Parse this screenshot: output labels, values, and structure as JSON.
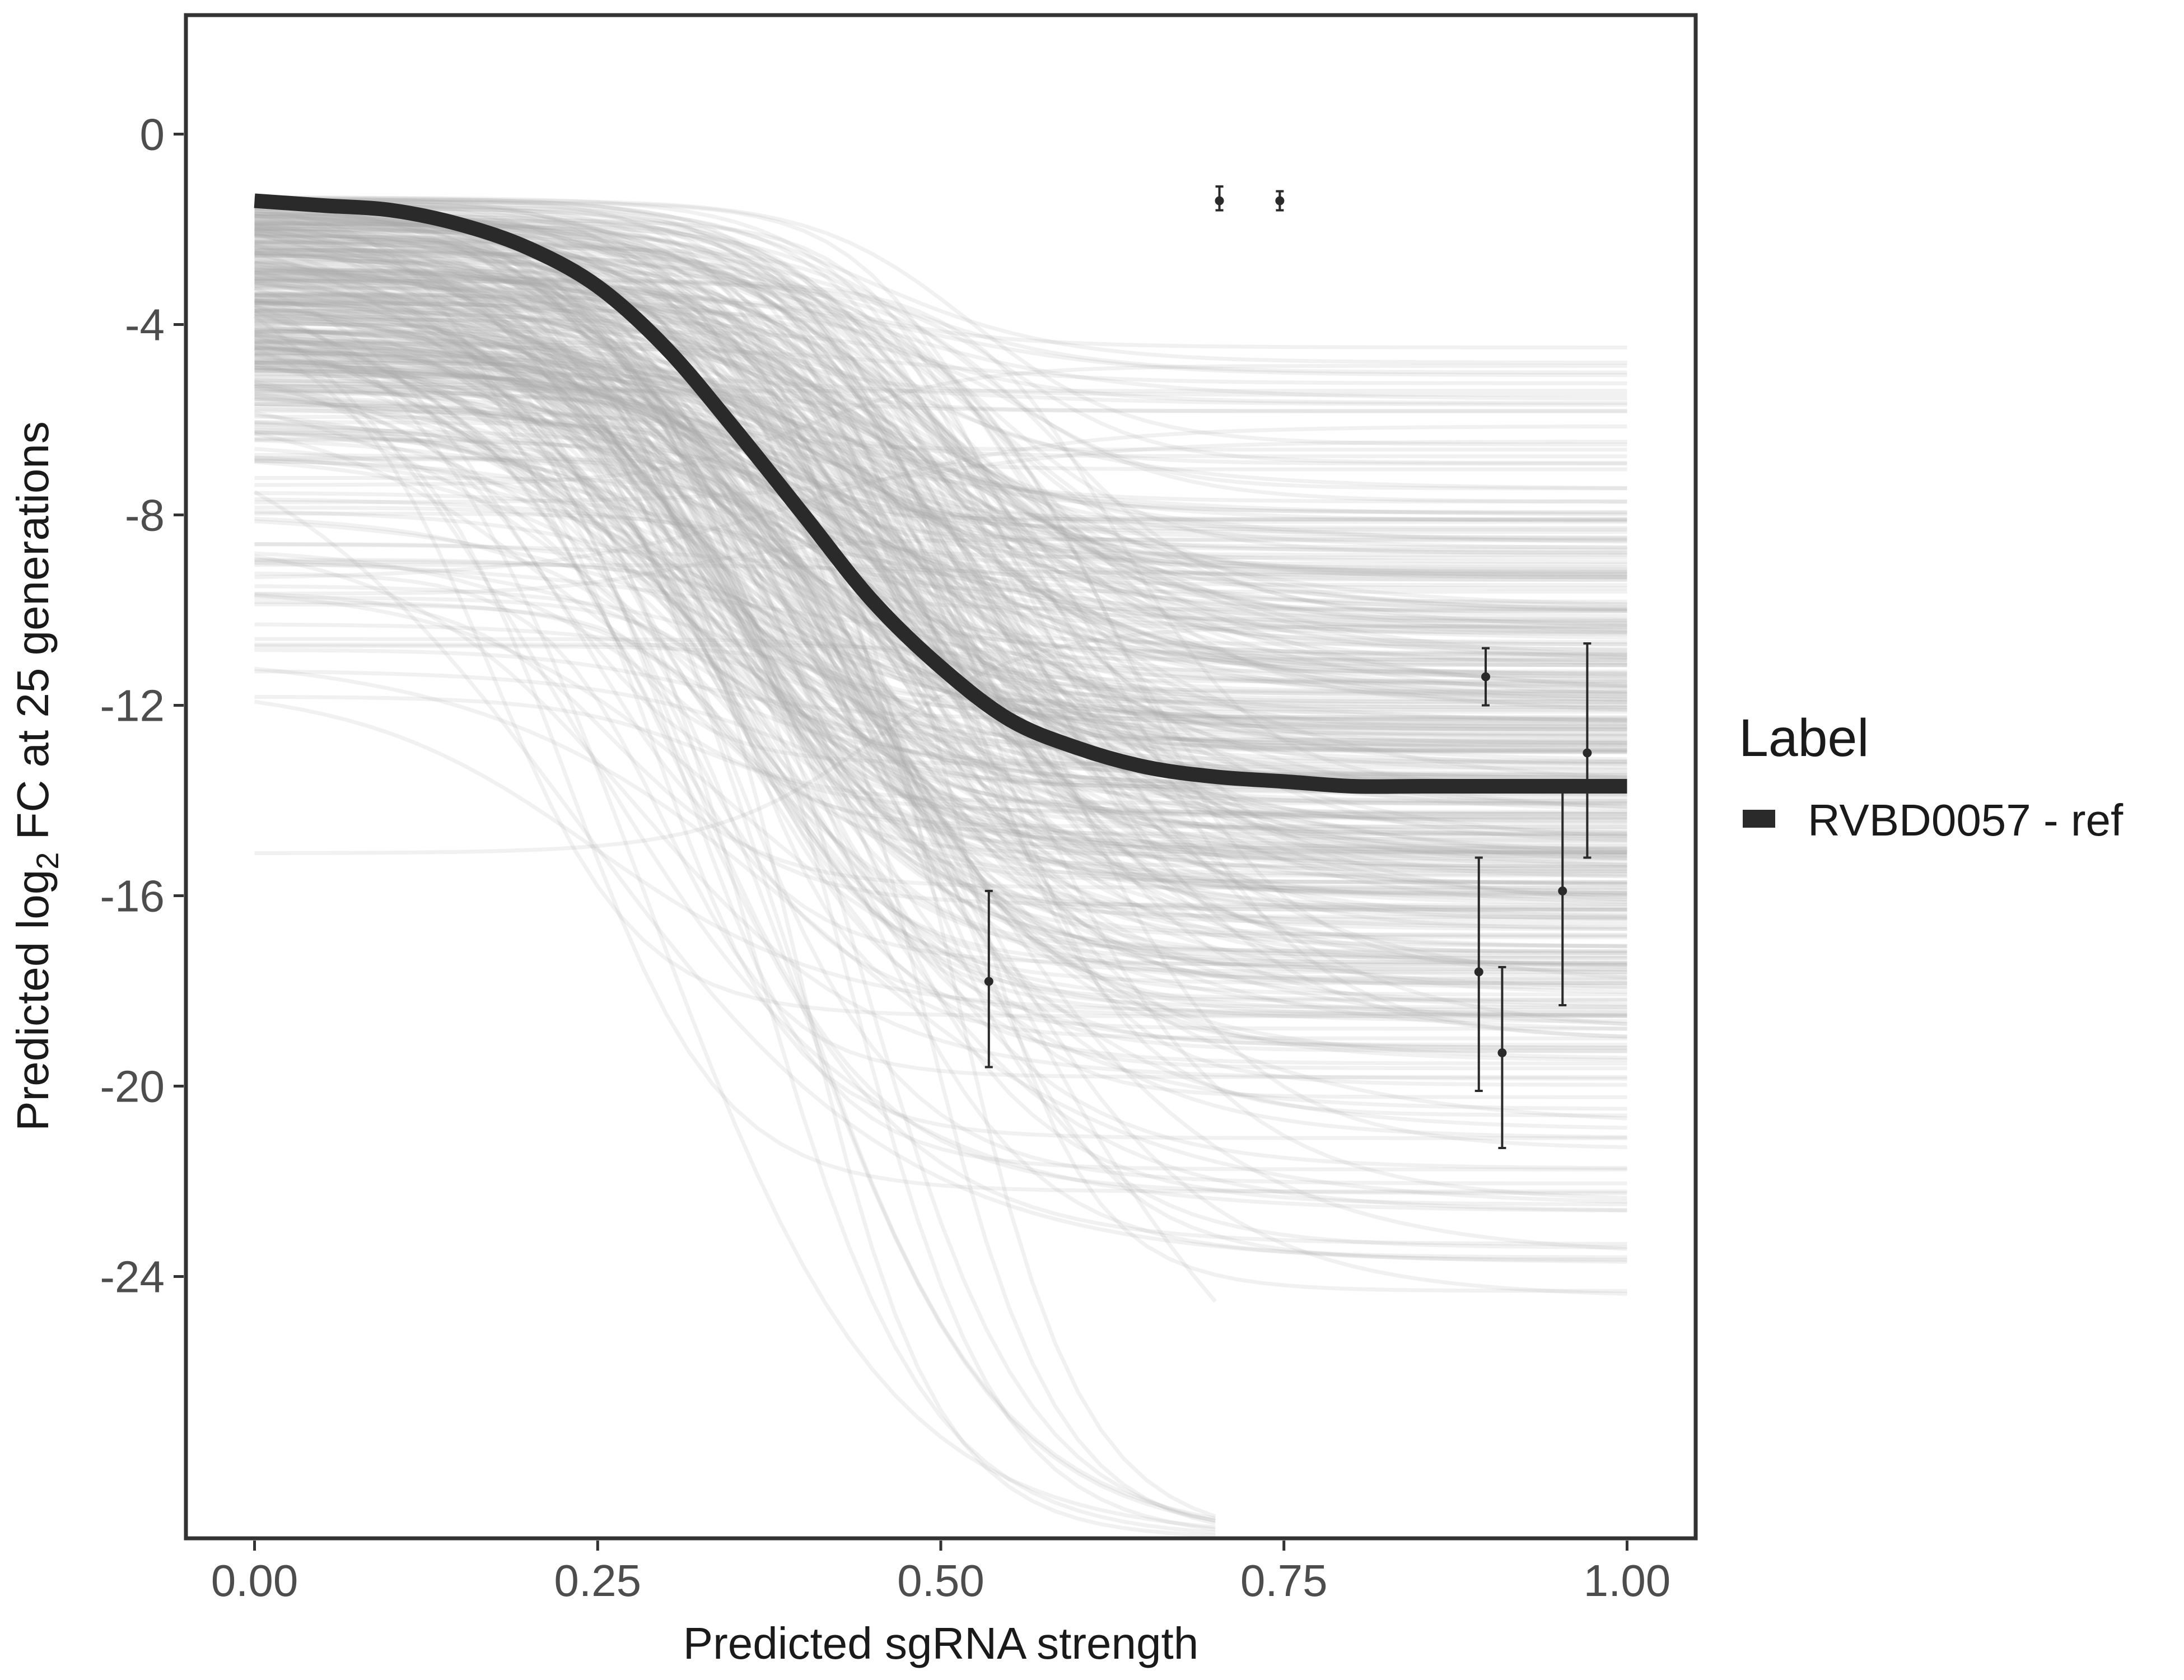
{
  "chart_data": {
    "type": "line",
    "title": "",
    "xlabel": "Predicted sgRNA strength",
    "ylabel_prefix": "Predicted  log",
    "ylabel_subscript": "2",
    "ylabel_suffix": " FC at 25 generations",
    "xlim": [
      -0.05,
      1.05
    ],
    "ylim": [
      -29.5,
      2.5
    ],
    "x_ticks": [
      0,
      0.25,
      0.5,
      0.75,
      1
    ],
    "x_tick_labels": [
      "0.00",
      "0.25",
      "0.50",
      "0.75",
      "1.00"
    ],
    "y_ticks": [
      0,
      -4,
      -8,
      -12,
      -16,
      -20,
      -24
    ],
    "y_tick_labels": [
      "0",
      "-4",
      "-8",
      "-12",
      "-16",
      "-20",
      "-24"
    ],
    "grid": false,
    "legend": {
      "title": "Label",
      "position": "right",
      "entries": [
        {
          "label": "RVBD0057 - ref",
          "color": "#2a2a2a"
        }
      ]
    },
    "series": [
      {
        "name": "RVBD0057 - ref",
        "kind": "logistic-fit",
        "color": "#2a2a2a",
        "x": [
          0.0,
          0.05,
          0.1,
          0.15,
          0.2,
          0.25,
          0.3,
          0.35,
          0.4,
          0.45,
          0.5,
          0.55,
          0.6,
          0.65,
          0.7,
          0.75,
          0.8,
          0.85,
          0.9,
          0.95,
          1.0
        ],
        "y": [
          -1.4,
          -1.5,
          -1.6,
          -1.9,
          -2.4,
          -3.2,
          -4.5,
          -6.2,
          -8.0,
          -9.8,
          -11.2,
          -12.3,
          -12.9,
          -13.3,
          -13.5,
          -13.6,
          -13.7,
          -13.7,
          -13.7,
          -13.7,
          -13.7
        ]
      }
    ],
    "posterior_draws": {
      "count": 420,
      "color": "#a8a8a8",
      "description_x_range": [
        0,
        1
      ]
    },
    "observations": [
      {
        "x": 0.535,
        "y": -17.8,
        "ymin": -19.6,
        "ymax": -15.9
      },
      {
        "x": 0.703,
        "y": -1.4,
        "ymin": -1.6,
        "ymax": -1.1
      },
      {
        "x": 0.747,
        "y": -1.4,
        "ymin": -1.6,
        "ymax": -1.2
      },
      {
        "x": 0.892,
        "y": -17.6,
        "ymin": -20.1,
        "ymax": -15.2
      },
      {
        "x": 0.897,
        "y": -11.4,
        "ymin": -12.0,
        "ymax": -10.8
      },
      {
        "x": 0.909,
        "y": -19.3,
        "ymin": -21.3,
        "ymax": -17.5
      },
      {
        "x": 0.953,
        "y": -15.9,
        "ymin": -18.3,
        "ymax": -13.6
      },
      {
        "x": 0.971,
        "y": -13.0,
        "ymin": -15.2,
        "ymax": -10.7
      }
    ]
  }
}
